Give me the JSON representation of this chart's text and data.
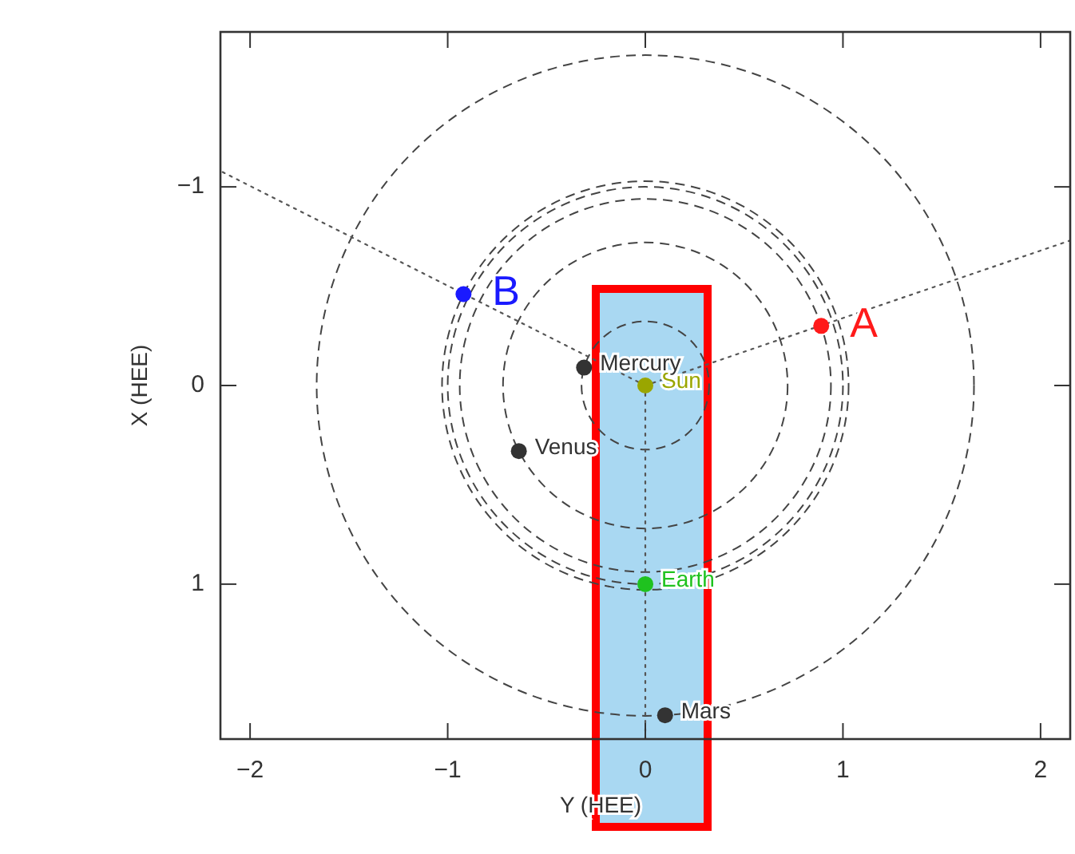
{
  "chart_data": {
    "type": "scatter",
    "xlabel": "Y (HEE)",
    "ylabel": "X (HEE)",
    "xlim": [
      -2.15,
      2.15
    ],
    "ylim": [
      1.78,
      -1.78
    ],
    "xticks": [
      -2,
      -1,
      0,
      1,
      2
    ],
    "yticks": [
      -1,
      0,
      1
    ],
    "grid": false,
    "legend": false,
    "series": [
      {
        "type": "line",
        "line_style": "dotted",
        "color": "#555555",
        "x": [
          0,
          -2.15
        ],
        "values": [
          0,
          -1.08
        ]
      },
      {
        "type": "line",
        "line_style": "dotted",
        "color": "#555555",
        "x": [
          0,
          2.15
        ],
        "values": [
          0,
          -0.73
        ]
      },
      {
        "type": "line",
        "line_style": "dotted",
        "color": "#555555",
        "x": [
          0,
          0
        ],
        "values": [
          0,
          1.78
        ]
      },
      {
        "name": "Sun",
        "marker": "circle",
        "color": "#9aa600",
        "x": [
          0
        ],
        "values": [
          0
        ]
      },
      {
        "name": "Mercury",
        "marker": "circle",
        "color": "#333333",
        "x": [
          -0.31
        ],
        "values": [
          -0.09
        ]
      },
      {
        "name": "Venus",
        "marker": "circle",
        "color": "#333333",
        "x": [
          -0.64
        ],
        "values": [
          0.33
        ]
      },
      {
        "name": "Earth",
        "marker": "circle",
        "color": "#1fc21f",
        "x": [
          0
        ],
        "values": [
          1.0
        ]
      },
      {
        "name": "Mars",
        "marker": "circle",
        "color": "#333333",
        "x": [
          0.1
        ],
        "values": [
          1.66
        ]
      },
      {
        "name": "A",
        "marker": "circle",
        "color": "#ff1a1a",
        "x": [
          0.89
        ],
        "values": [
          -0.3
        ]
      },
      {
        "name": "B",
        "marker": "circle",
        "color": "#1a1aff",
        "x": [
          -0.92
        ],
        "values": [
          -0.46
        ]
      }
    ]
  }
}
